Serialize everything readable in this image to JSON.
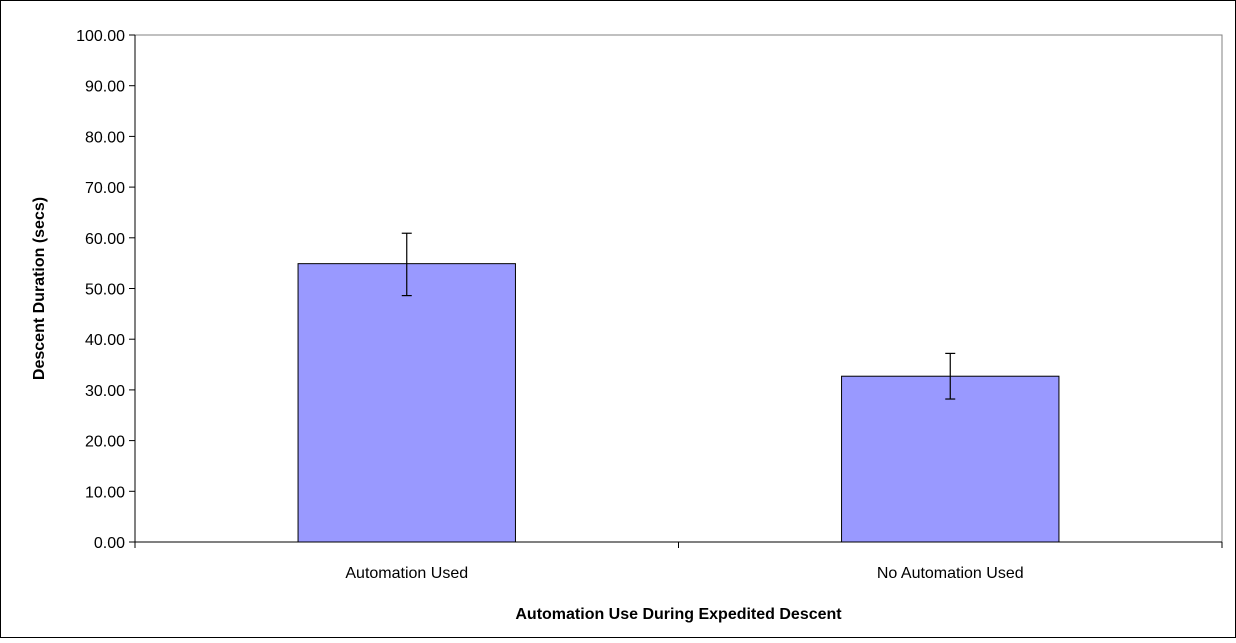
{
  "chart_data": {
    "type": "bar",
    "title": "",
    "xlabel": "Automation Use During Expedited Descent",
    "ylabel": "Descent Duration (secs)",
    "categories": [
      "Automation Used",
      "No Automation Used"
    ],
    "series": [
      {
        "values": [
          54.9,
          32.7
        ],
        "error_low": [
          48.6,
          28.2
        ],
        "error_high": [
          60.9,
          37.2
        ]
      }
    ],
    "ylim": [
      0,
      100
    ],
    "yticks": [
      0,
      10,
      20,
      30,
      40,
      50,
      60,
      70,
      80,
      90,
      100
    ],
    "ytick_labels": [
      "0.00",
      "10.00",
      "20.00",
      "30.00",
      "40.00",
      "50.00",
      "60.00",
      "70.00",
      "80.00",
      "90.00",
      "100.00"
    ],
    "grid": false,
    "legend": "none",
    "colors": {
      "bar_fill": "#9999FF",
      "bar_stroke": "#000000",
      "plot_border": "#808080",
      "axis": "#000000",
      "frame": "#000000"
    }
  }
}
